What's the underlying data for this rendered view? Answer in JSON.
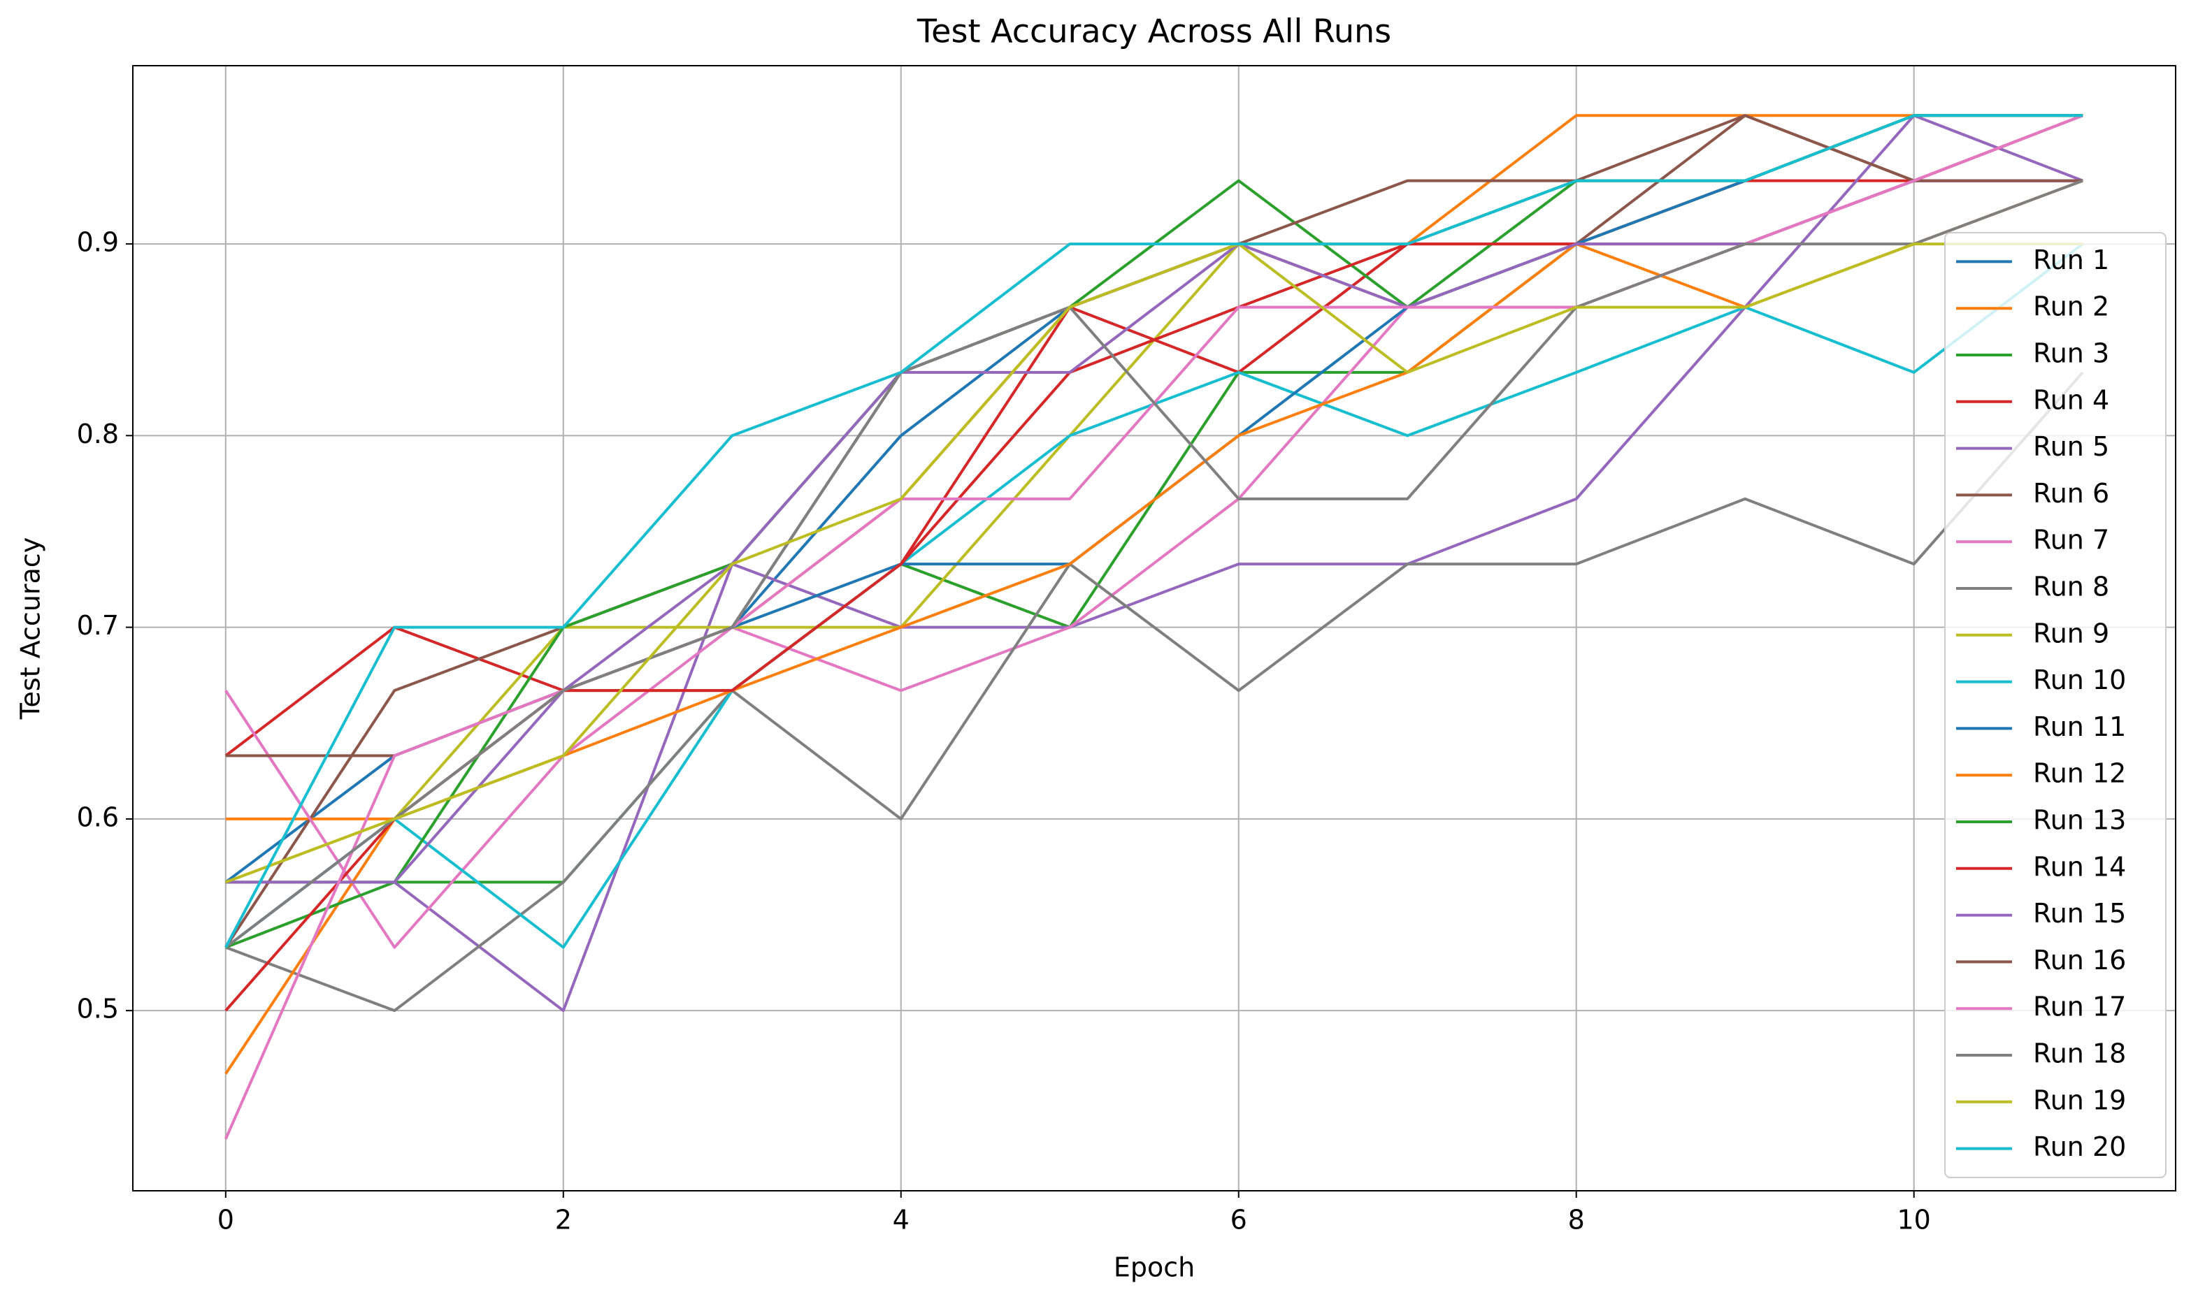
{
  "chart_data": {
    "type": "line",
    "title": "Test Accuracy Across All Runs",
    "x_label": "Epoch",
    "y_label": "Test Accuracy",
    "x": [
      0,
      1,
      2,
      3,
      4,
      5,
      6,
      7,
      8,
      9,
      10,
      11
    ],
    "xlim": [
      -0.55,
      11.55
    ],
    "xticks": [
      0,
      2,
      4,
      6,
      8,
      10
    ],
    "ylim": [
      0.406,
      0.993
    ],
    "yticks": [
      0.5,
      0.6,
      0.7,
      0.8,
      0.9
    ],
    "grid": true,
    "legend": "right",
    "series": [
      {
        "name": "Run 1",
        "color": "#1f77b4",
        "values": [
          0.567,
          0.633,
          0.667,
          0.7,
          0.8,
          0.867,
          0.9,
          0.9,
          0.933,
          0.933,
          0.967,
          0.967
        ]
      },
      {
        "name": "Run 2",
        "color": "#ff7f0e",
        "values": [
          0.6,
          0.6,
          0.667,
          0.7,
          0.767,
          0.867,
          0.9,
          0.9,
          0.967,
          0.967,
          0.967,
          0.967
        ]
      },
      {
        "name": "Run 3",
        "color": "#2ca02c",
        "values": [
          0.567,
          0.567,
          0.567,
          0.667,
          0.733,
          0.7,
          0.833,
          0.833,
          0.9,
          0.933,
          0.967,
          0.967
        ]
      },
      {
        "name": "Run 4",
        "color": "#d62728",
        "values": [
          0.633,
          0.7,
          0.667,
          0.667,
          0.733,
          0.867,
          0.833,
          0.9,
          0.9,
          0.933,
          0.933,
          0.933
        ]
      },
      {
        "name": "Run 5",
        "color": "#9467bd",
        "values": [
          0.567,
          0.567,
          0.5,
          0.733,
          0.7,
          0.7,
          0.733,
          0.733,
          0.767,
          0.867,
          0.967,
          0.933
        ]
      },
      {
        "name": "Run 6",
        "color": "#8c564b",
        "values": [
          0.533,
          0.667,
          0.7,
          0.733,
          0.833,
          0.867,
          0.9,
          0.867,
          0.9,
          0.967,
          0.933,
          0.933
        ]
      },
      {
        "name": "Run 7",
        "color": "#e377c2",
        "values": [
          0.667,
          0.533,
          0.633,
          0.7,
          0.667,
          0.7,
          0.767,
          0.867,
          0.867,
          0.9,
          0.933,
          0.967
        ]
      },
      {
        "name": "Run 8",
        "color": "#7f7f7f",
        "values": [
          0.533,
          0.5,
          0.567,
          0.667,
          0.6,
          0.733,
          0.667,
          0.733,
          0.733,
          0.767,
          0.733,
          0.833
        ]
      },
      {
        "name": "Run 9",
        "color": "#bcbd22",
        "values": [
          0.567,
          0.6,
          0.7,
          0.7,
          0.7,
          0.8,
          0.9,
          0.9,
          0.933,
          0.933,
          0.967,
          0.967
        ]
      },
      {
        "name": "Run 10",
        "color": "#17becf",
        "values": [
          0.533,
          0.6,
          0.533,
          0.667,
          0.733,
          0.8,
          0.833,
          0.8,
          0.833,
          0.867,
          0.833,
          0.9
        ]
      },
      {
        "name": "Run 11",
        "color": "#1f77b4",
        "values": [
          0.533,
          0.6,
          0.667,
          0.7,
          0.733,
          0.733,
          0.8,
          0.867,
          0.9,
          0.933,
          0.967,
          0.967
        ]
      },
      {
        "name": "Run 12",
        "color": "#ff7f0e",
        "values": [
          0.467,
          0.6,
          0.633,
          0.667,
          0.7,
          0.733,
          0.8,
          0.833,
          0.9,
          0.867,
          0.9,
          0.933
        ]
      },
      {
        "name": "Run 13",
        "color": "#2ca02c",
        "values": [
          0.533,
          0.567,
          0.7,
          0.733,
          0.833,
          0.867,
          0.933,
          0.867,
          0.933,
          0.933,
          0.967,
          0.967
        ]
      },
      {
        "name": "Run 14",
        "color": "#d62728",
        "values": [
          0.5,
          0.6,
          0.667,
          0.667,
          0.733,
          0.833,
          0.867,
          0.9,
          0.9,
          0.9,
          0.933,
          0.967
        ]
      },
      {
        "name": "Run 15",
        "color": "#9467bd",
        "values": [
          0.567,
          0.567,
          0.667,
          0.733,
          0.833,
          0.833,
          0.9,
          0.867,
          0.9,
          0.9,
          0.933,
          0.933
        ]
      },
      {
        "name": "Run 16",
        "color": "#8c564b",
        "values": [
          0.633,
          0.633,
          0.667,
          0.7,
          0.833,
          0.867,
          0.9,
          0.933,
          0.933,
          0.967,
          0.933,
          0.933
        ]
      },
      {
        "name": "Run 17",
        "color": "#e377c2",
        "values": [
          0.433,
          0.633,
          0.667,
          0.7,
          0.767,
          0.767,
          0.867,
          0.867,
          0.867,
          0.9,
          0.933,
          0.967
        ]
      },
      {
        "name": "Run 18",
        "color": "#7f7f7f",
        "values": [
          0.533,
          0.6,
          0.667,
          0.7,
          0.833,
          0.867,
          0.767,
          0.767,
          0.867,
          0.9,
          0.9,
          0.933
        ]
      },
      {
        "name": "Run 19",
        "color": "#bcbd22",
        "values": [
          0.567,
          0.6,
          0.633,
          0.733,
          0.767,
          0.867,
          0.9,
          0.833,
          0.867,
          0.867,
          0.9,
          0.9
        ]
      },
      {
        "name": "Run 20",
        "color": "#17becf",
        "values": [
          0.533,
          0.7,
          0.7,
          0.8,
          0.833,
          0.9,
          0.9,
          0.9,
          0.933,
          0.933,
          0.967,
          0.967
        ]
      }
    ]
  }
}
